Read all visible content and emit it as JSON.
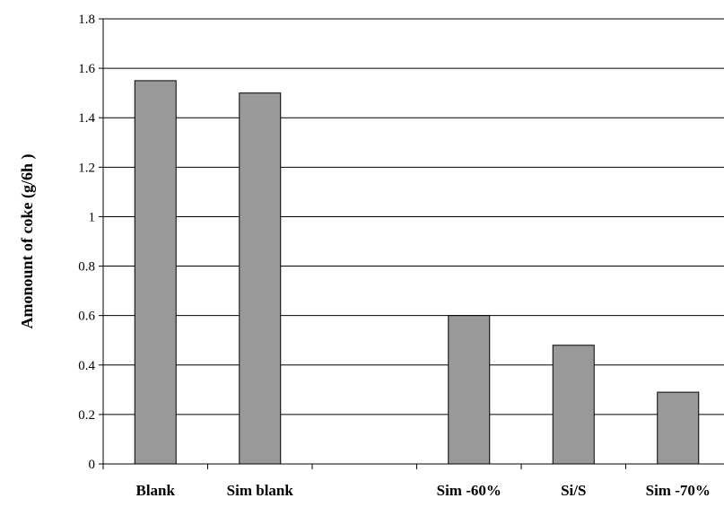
{
  "chart_data": {
    "type": "bar",
    "title": "",
    "xlabel": "",
    "ylabel": "Amonount of coke (g/6h  )",
    "categories": [
      "Blank",
      "Sim blank",
      "",
      "Sim -60%",
      "Si/S",
      "Sim -70%"
    ],
    "series": [
      {
        "values": [
          1.55,
          1.5,
          null,
          0.6,
          0.48,
          0.29
        ]
      }
    ],
    "ylim": [
      0,
      1.8
    ],
    "yticks": [
      "0",
      "0.2",
      "0.4",
      "0.6",
      "0.8",
      "1",
      "1.2",
      "1.4",
      "1.6",
      "1.8"
    ],
    "grid": "horizontal",
    "colors": {
      "bar": "#999999",
      "bar_stroke": "#000000",
      "grid": "#000000"
    }
  }
}
